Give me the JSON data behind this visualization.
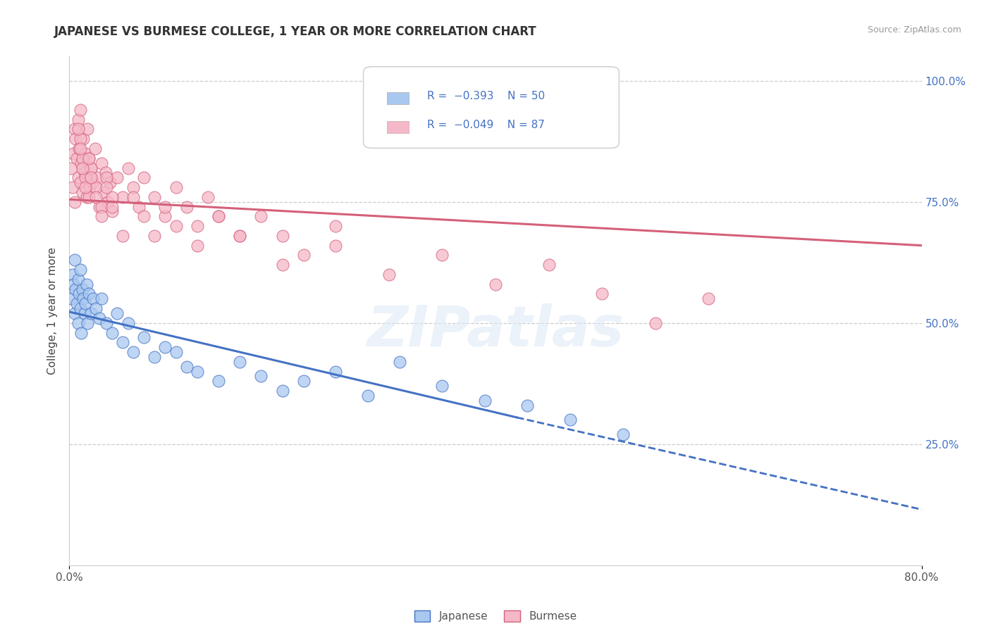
{
  "title": "JAPANESE VS BURMESE COLLEGE, 1 YEAR OR MORE CORRELATION CHART",
  "source_text": "Source: ZipAtlas.com",
  "ylabel": "College, 1 year or more",
  "xlim": [
    0.0,
    0.8
  ],
  "ylim": [
    0.0,
    1.05
  ],
  "ytick_values": [
    0.25,
    0.5,
    0.75,
    1.0
  ],
  "ytick_labels": [
    "25.0%",
    "50.0%",
    "75.0%",
    "100.0%"
  ],
  "color_japanese": "#a8c8f0",
  "color_japanese_dark": "#4472C4",
  "color_burmese": "#f5b8c8",
  "color_burmese_dark": "#d4607a",
  "watermark": "ZIPatlas",
  "japanese_x": [
    0.002,
    0.003,
    0.004,
    0.005,
    0.005,
    0.006,
    0.007,
    0.008,
    0.008,
    0.009,
    0.01,
    0.01,
    0.011,
    0.012,
    0.013,
    0.014,
    0.015,
    0.016,
    0.017,
    0.018,
    0.02,
    0.022,
    0.025,
    0.028,
    0.03,
    0.035,
    0.04,
    0.045,
    0.05,
    0.055,
    0.06,
    0.07,
    0.08,
    0.09,
    0.1,
    0.11,
    0.12,
    0.14,
    0.16,
    0.18,
    0.2,
    0.22,
    0.25,
    0.28,
    0.31,
    0.35,
    0.39,
    0.43,
    0.47,
    0.52
  ],
  "japanese_y": [
    0.55,
    0.6,
    0.58,
    0.52,
    0.63,
    0.57,
    0.54,
    0.59,
    0.5,
    0.56,
    0.53,
    0.61,
    0.48,
    0.57,
    0.55,
    0.52,
    0.54,
    0.58,
    0.5,
    0.56,
    0.52,
    0.55,
    0.53,
    0.51,
    0.55,
    0.5,
    0.48,
    0.52,
    0.46,
    0.5,
    0.44,
    0.47,
    0.43,
    0.45,
    0.44,
    0.41,
    0.4,
    0.38,
    0.42,
    0.39,
    0.36,
    0.38,
    0.4,
    0.35,
    0.42,
    0.37,
    0.34,
    0.33,
    0.3,
    0.27
  ],
  "burmese_x": [
    0.002,
    0.003,
    0.004,
    0.005,
    0.005,
    0.006,
    0.007,
    0.008,
    0.008,
    0.009,
    0.01,
    0.01,
    0.011,
    0.012,
    0.013,
    0.014,
    0.015,
    0.016,
    0.017,
    0.018,
    0.019,
    0.02,
    0.022,
    0.024,
    0.026,
    0.028,
    0.03,
    0.032,
    0.034,
    0.036,
    0.038,
    0.04,
    0.045,
    0.05,
    0.055,
    0.06,
    0.065,
    0.07,
    0.08,
    0.09,
    0.1,
    0.11,
    0.12,
    0.13,
    0.14,
    0.16,
    0.18,
    0.2,
    0.22,
    0.25,
    0.01,
    0.012,
    0.015,
    0.018,
    0.02,
    0.025,
    0.03,
    0.035,
    0.04,
    0.05,
    0.06,
    0.07,
    0.08,
    0.09,
    0.1,
    0.12,
    0.14,
    0.16,
    0.2,
    0.25,
    0.3,
    0.35,
    0.4,
    0.45,
    0.5,
    0.55,
    0.6,
    0.008,
    0.01,
    0.012,
    0.015,
    0.018,
    0.02,
    0.025,
    0.03,
    0.035,
    0.04
  ],
  "burmese_y": [
    0.82,
    0.78,
    0.85,
    0.9,
    0.75,
    0.88,
    0.84,
    0.8,
    0.92,
    0.86,
    0.79,
    0.94,
    0.83,
    0.77,
    0.88,
    0.81,
    0.85,
    0.76,
    0.9,
    0.84,
    0.78,
    0.82,
    0.79,
    0.86,
    0.8,
    0.74,
    0.83,
    0.77,
    0.81,
    0.75,
    0.79,
    0.73,
    0.8,
    0.76,
    0.82,
    0.78,
    0.74,
    0.8,
    0.76,
    0.72,
    0.78,
    0.74,
    0.7,
    0.76,
    0.72,
    0.68,
    0.72,
    0.68,
    0.64,
    0.7,
    0.88,
    0.84,
    0.8,
    0.76,
    0.82,
    0.78,
    0.74,
    0.8,
    0.76,
    0.68,
    0.76,
    0.72,
    0.68,
    0.74,
    0.7,
    0.66,
    0.72,
    0.68,
    0.62,
    0.66,
    0.6,
    0.64,
    0.58,
    0.62,
    0.56,
    0.5,
    0.55,
    0.9,
    0.86,
    0.82,
    0.78,
    0.84,
    0.8,
    0.76,
    0.72,
    0.78,
    0.74
  ],
  "jline_x0": 0.0,
  "jline_y0": 0.523,
  "jline_x1": 0.42,
  "jline_y1": 0.305,
  "jline_xd": 0.8,
  "jline_yd": 0.115,
  "bline_x0": 0.0,
  "bline_y0": 0.755,
  "bline_x1": 0.8,
  "bline_y1": 0.66
}
